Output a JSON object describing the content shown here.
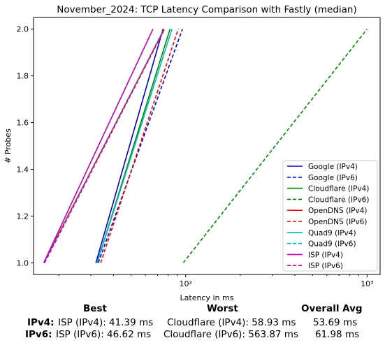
{
  "chart_data": {
    "type": "line",
    "title": "November_2024: TCP Latency Comparison with Fastly (median)",
    "xlabel": "Latency in ms",
    "ylabel": "# Probes",
    "xscale": "log",
    "xlim": [
      14.5,
      1180
    ],
    "ylim": [
      0.95,
      2.05
    ],
    "x_ticks": [
      100,
      1000
    ],
    "x_tick_labels": [
      "10²",
      "10³"
    ],
    "y_ticks": [
      1.0,
      1.2,
      1.4,
      1.6,
      1.8,
      2.0
    ],
    "y_tick_labels": [
      "1.0",
      "1.2",
      "1.4",
      "1.6",
      "1.8",
      "2.0"
    ],
    "grid": false,
    "legend_position": "lower-right",
    "series": [
      {
        "name": "Google (IPv4)",
        "color": "#0000cc",
        "dash": "solid",
        "x": [
          32.0,
          75.0
        ],
        "y": [
          1,
          2
        ]
      },
      {
        "name": "Google (IPv6)",
        "color": "#0000cc",
        "dash": "dashed",
        "x": [
          33.0,
          96.0
        ],
        "y": [
          1,
          2
        ]
      },
      {
        "name": "Cloudflare (IPv4)",
        "color": "#008800",
        "dash": "solid",
        "x": [
          32.5,
          82.0
        ],
        "y": [
          1,
          2
        ]
      },
      {
        "name": "Cloudflare (IPv6)",
        "color": "#008800",
        "dash": "dashed",
        "x": [
          97.0,
          1000.0
        ],
        "y": [
          1,
          2
        ]
      },
      {
        "name": "OpenDNS (IPv4)",
        "color": "#ee0000",
        "dash": "solid",
        "x": [
          16.5,
          76.0
        ],
        "y": [
          1,
          2
        ]
      },
      {
        "name": "OpenDNS (IPv6)",
        "color": "#ee0000",
        "dash": "dashed",
        "x": [
          34.0,
          91.0
        ],
        "y": [
          1,
          2
        ]
      },
      {
        "name": "Quad9 (IPv4)",
        "color": "#00bbbb",
        "dash": "solid",
        "x": [
          32.5,
          84.0
        ],
        "y": [
          1,
          2
        ]
      },
      {
        "name": "Quad9 (IPv6)",
        "color": "#00bbbb",
        "dash": "dashed",
        "x": [
          16.6,
          76.0
        ],
        "y": [
          1,
          2
        ]
      },
      {
        "name": "ISP (IPv4)",
        "color": "#bb00bb",
        "dash": "solid",
        "x": [
          16.5,
          66.0
        ],
        "y": [
          1,
          2
        ]
      },
      {
        "name": "ISP (IPv6)",
        "color": "#bb00bb",
        "dash": "dashed",
        "x": [
          16.7,
          76.5
        ],
        "y": [
          1,
          2
        ]
      }
    ]
  },
  "stats": {
    "best_header": "Best",
    "worst_header": "Worst",
    "avg_header": "Overall Avg",
    "ipv4_label": "IPv4:",
    "ipv6_label": "IPv6:",
    "ipv4_best": "ISP (IPv4): 41.39 ms",
    "ipv6_best": "ISP (IPv6): 46.62 ms",
    "ipv4_worst": "Cloudflare (IPv4): 58.93 ms",
    "ipv6_worst": "Cloudflare (IPv6): 563.87 ms",
    "ipv4_avg": "53.69 ms",
    "ipv6_avg": "61.98 ms"
  }
}
